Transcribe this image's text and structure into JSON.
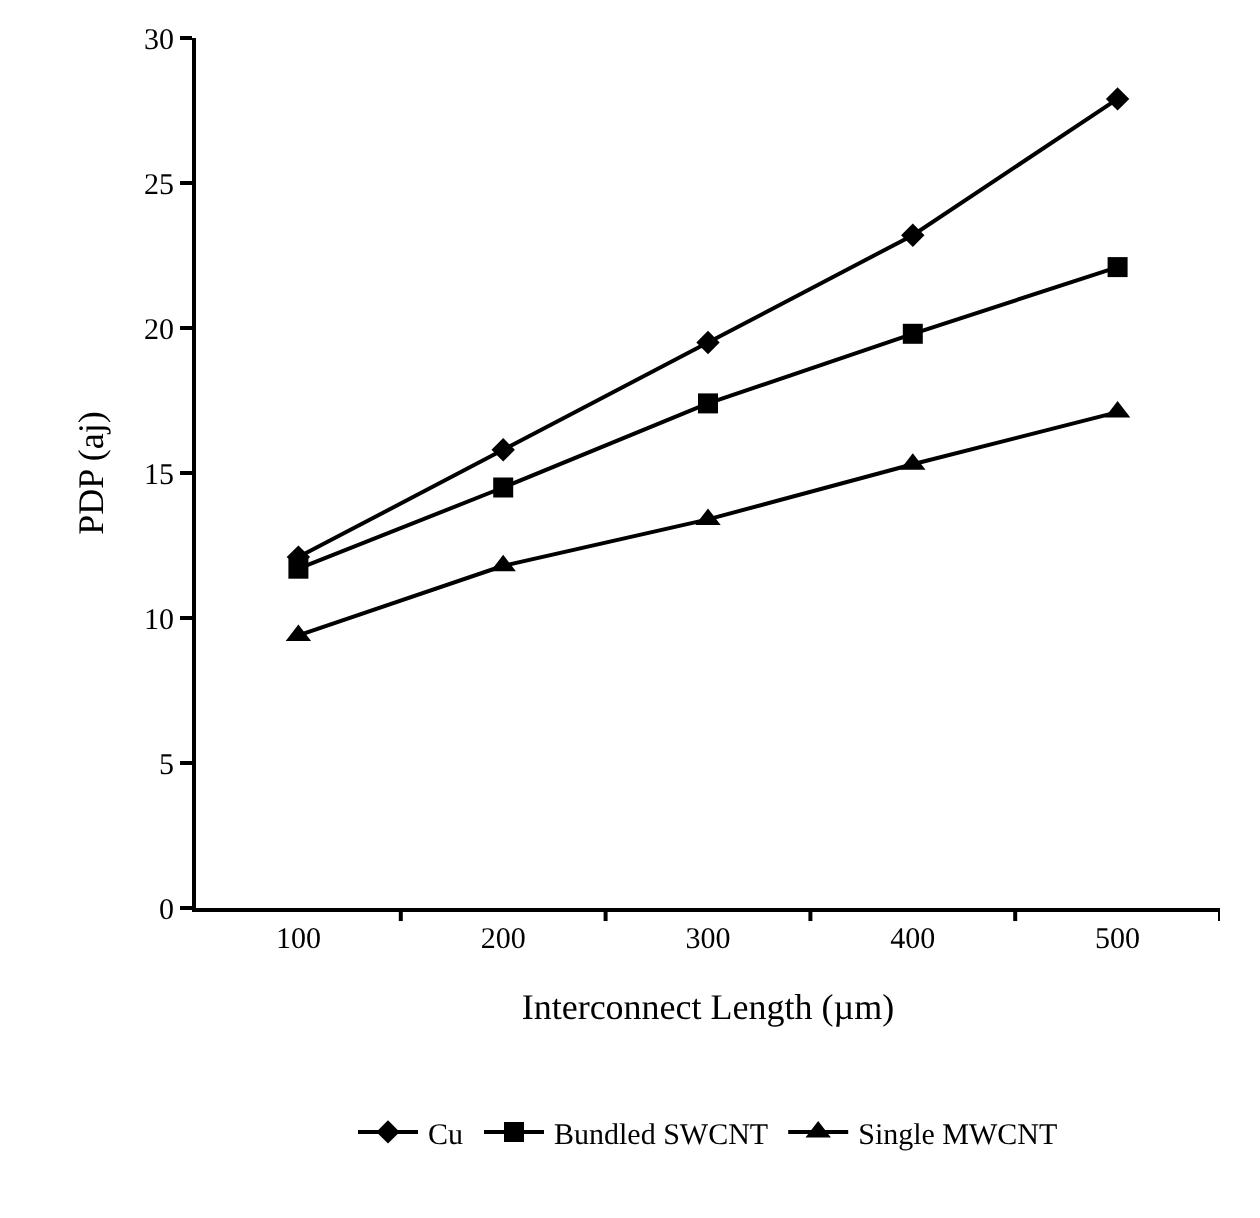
{
  "chart_data": {
    "type": "line",
    "xlabel": "Interconnect Length (µm)",
    "ylabel": "PDP (aj)",
    "categories": [
      "100",
      "200",
      "300",
      "400",
      "500"
    ],
    "ylim": [
      0,
      30
    ],
    "yticks": [
      0,
      5,
      10,
      15,
      20,
      25,
      30
    ],
    "legend": "bottom",
    "line_style": "solid",
    "series": [
      {
        "name": "Cu",
        "color": "#000000",
        "marker": "diamond",
        "values": [
          12.1,
          15.8,
          19.5,
          23.2,
          27.9
        ]
      },
      {
        "name": "Bundled SWCNT",
        "color": "#000000",
        "marker": "square",
        "values": [
          11.7,
          14.5,
          17.4,
          19.8,
          22.1
        ]
      },
      {
        "name": "Single MWCNT",
        "color": "#000000",
        "marker": "triangle",
        "values": [
          9.4,
          11.8,
          13.4,
          15.3,
          17.1
        ]
      }
    ]
  }
}
